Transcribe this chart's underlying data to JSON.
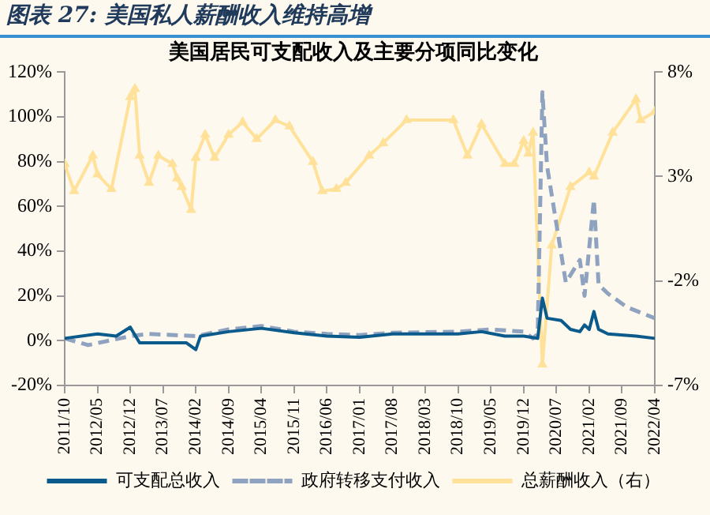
{
  "chart_data": {
    "type": "line",
    "title": "图表 27: 美国私人薪酬收入维持高增",
    "subtitle": "美国居民可支配收入及主要分项同比变化",
    "xlim": [
      "2011-10",
      "2022-04"
    ],
    "xticks": [
      {
        "value": "2011-10",
        "label": "2011/10"
      },
      {
        "value": "2012-05",
        "label": "2012/05"
      },
      {
        "value": "2012-12",
        "label": "2012/12"
      },
      {
        "value": "2013-07",
        "label": "2013/07"
      },
      {
        "value": "2014-02",
        "label": "2014/02"
      },
      {
        "value": "2014-09",
        "label": "2014/09"
      },
      {
        "value": "2015-04",
        "label": "2015/04"
      },
      {
        "value": "2015-11",
        "label": "2015/11"
      },
      {
        "value": "2016-06",
        "label": "2016/06"
      },
      {
        "value": "2017-01",
        "label": "2017/01"
      },
      {
        "value": "2017-08",
        "label": "2017/08"
      },
      {
        "value": "2018-03",
        "label": "2018/03"
      },
      {
        "value": "2018-10",
        "label": "2018/10"
      },
      {
        "value": "2019-05",
        "label": "2019/05"
      },
      {
        "value": "2019-12",
        "label": "2019/12"
      },
      {
        "value": "2020-07",
        "label": "2020/07"
      },
      {
        "value": "2021-02",
        "label": "2021/02"
      },
      {
        "value": "2021-09",
        "label": "2021/09"
      },
      {
        "value": "2022-04",
        "label": "2022/04"
      }
    ],
    "ylim": [
      -20,
      120
    ],
    "yticks": [
      {
        "value": -20,
        "label": "-20%"
      },
      {
        "value": 0,
        "label": "0%"
      },
      {
        "value": 20,
        "label": "20%"
      },
      {
        "value": 40,
        "label": "40%"
      },
      {
        "value": 60,
        "label": "60%"
      },
      {
        "value": 80,
        "label": "80%"
      },
      {
        "value": 100,
        "label": "100%"
      },
      {
        "value": 120,
        "label": "120%"
      }
    ],
    "y2lim": [
      -7,
      8
    ],
    "y2ticks": [
      {
        "value": -7,
        "label": "-7%"
      },
      {
        "value": -2,
        "label": "-2%"
      },
      {
        "value": 3,
        "label": "3%"
      },
      {
        "value": 8,
        "label": "8%"
      }
    ],
    "grid": false,
    "legend": "bottom",
    "series": [
      {
        "name": "可支配总收入",
        "color": "#0b5a8c",
        "line_style": "solid",
        "marker": "none",
        "x": [
          "2011-10",
          "2012-05",
          "2012-09",
          "2012-12",
          "2013-02",
          "2013-07",
          "2013-12",
          "2014-02",
          "2014-03",
          "2014-09",
          "2015-04",
          "2015-11",
          "2016-06",
          "2017-01",
          "2017-08",
          "2018-03",
          "2018-10",
          "2019-03",
          "2019-08",
          "2019-12",
          "2020-03",
          "2020-04",
          "2020-05",
          "2020-08",
          "2020-10",
          "2020-12",
          "2021-01",
          "2021-02",
          "2021-03",
          "2021-04",
          "2021-06",
          "2021-12",
          "2022-04"
        ],
        "values": [
          1,
          3,
          2,
          6,
          -1,
          -1,
          -1,
          -4,
          2,
          4,
          5.5,
          3.5,
          2,
          1.5,
          3,
          3,
          3,
          4,
          2,
          2,
          1,
          19,
          10,
          9,
          5,
          4,
          7,
          5,
          13,
          5,
          3,
          2,
          1
        ]
      },
      {
        "name": "政府转移支付收入",
        "color": "#8fa2c0",
        "line_style": "dashed",
        "marker": "none",
        "x": [
          "2011-10",
          "2012-03",
          "2012-12",
          "2013-04",
          "2014-02",
          "2014-09",
          "2015-04",
          "2015-11",
          "2016-06",
          "2017-01",
          "2017-08",
          "2018-10",
          "2019-05",
          "2019-12",
          "2020-02",
          "2020-03",
          "2020-04",
          "2020-05",
          "2020-07",
          "2020-09",
          "2020-12",
          "2021-01",
          "2021-03",
          "2021-04",
          "2021-06",
          "2021-10",
          "2022-04"
        ],
        "values": [
          1,
          -2,
          2,
          3,
          2,
          5,
          6.5,
          4,
          3,
          2.5,
          3.5,
          4,
          5,
          4,
          1,
          3,
          111,
          78,
          52,
          26,
          36,
          20,
          63,
          25,
          21,
          15,
          10
        ]
      },
      {
        "name": "总薪酬收入（右）",
        "color": "#ffe199",
        "axis": "y2",
        "line_style": "solid",
        "marker": "triangle",
        "x": [
          "2011-10",
          "2011-12",
          "2012-04",
          "2012-05",
          "2012-08",
          "2012-12",
          "2013-01",
          "2013-02",
          "2013-04",
          "2013-06",
          "2013-09",
          "2013-10",
          "2013-11",
          "2014-01",
          "2014-02",
          "2014-04",
          "2014-06",
          "2014-09",
          "2014-12",
          "2015-03",
          "2015-07",
          "2015-10",
          "2016-03",
          "2016-05",
          "2016-08",
          "2016-10",
          "2017-03",
          "2017-06",
          "2017-11",
          "2018-09",
          "2018-12",
          "2019-03",
          "2019-08",
          "2019-10",
          "2019-12",
          "2020-01",
          "2020-02",
          "2020-04",
          "2020-06",
          "2020-10",
          "2021-02",
          "2021-03",
          "2021-07",
          "2021-12",
          "2022-01",
          "2022-04"
        ],
        "values": [
          3.6,
          2.3,
          4.0,
          3.1,
          2.4,
          6.8,
          7.2,
          4.0,
          2.7,
          4.0,
          3.6,
          2.9,
          2.5,
          1.4,
          3.9,
          5.0,
          3.9,
          5.0,
          5.6,
          4.8,
          5.7,
          5.4,
          3.7,
          2.3,
          2.4,
          2.7,
          4.0,
          4.6,
          5.7,
          5.7,
          4.0,
          5.5,
          3.6,
          3.6,
          4.7,
          4.1,
          5.1,
          -6,
          -0.3,
          2.5,
          3.2,
          3.0,
          5.1,
          6.7,
          5.7,
          6.1
        ]
      }
    ]
  }
}
